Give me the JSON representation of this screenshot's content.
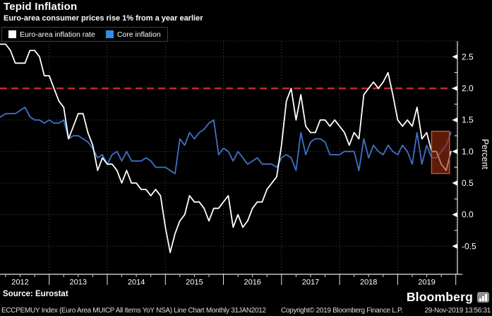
{
  "header": {
    "title": "Tepid Inflation",
    "subtitle": "Euro-area consumer prices rise 1% from a year earlier"
  },
  "legend": [
    {
      "label": "Euro-area inflation rate",
      "color": "#ffffff"
    },
    {
      "label": "Core inflation",
      "color": "#2f8fe8"
    }
  ],
  "chart_data": {
    "type": "line",
    "title": "Tepid Inflation",
    "frequency": "monthly",
    "x_start": "Jan 2012",
    "x_end": "Nov 2019",
    "x_tick_labels": [
      "2012",
      "2013",
      "2014",
      "2015",
      "2016",
      "2017",
      "2018",
      "2019"
    ],
    "ylabel": "Percent",
    "y_ticks": [
      2.5,
      2.0,
      1.5,
      1.0,
      0.5,
      0.0,
      -0.5
    ],
    "y_minor_ticks": [
      2.25,
      1.75,
      1.25,
      0.75,
      0.25,
      -0.25
    ],
    "ylim": [
      -0.95,
      2.75
    ],
    "grid": true,
    "legend_position": "top-left",
    "reference_line": {
      "value": 2.0,
      "color": "#bf2b2b",
      "style": "dashed",
      "label": ""
    },
    "highlight_box": {
      "from_month": "Jul 2019",
      "to_month": "Nov 2019",
      "month_index_start": 90,
      "month_index_end": 93.7,
      "value_low": 0.65,
      "value_high": 1.32,
      "fill": "rgba(158,45,16,0.6)",
      "border": "#b05a30"
    },
    "series": [
      {
        "name": "Euro-area inflation rate",
        "color": "#ffffff",
        "values": [
          2.7,
          2.7,
          2.7,
          2.6,
          2.4,
          2.4,
          2.4,
          2.6,
          2.6,
          2.5,
          2.2,
          2.2,
          2.0,
          1.8,
          1.7,
          1.2,
          1.4,
          1.6,
          1.6,
          1.3,
          1.1,
          0.7,
          0.9,
          0.8,
          0.8,
          0.7,
          0.5,
          0.7,
          0.5,
          0.5,
          0.4,
          0.4,
          0.3,
          0.4,
          0.3,
          -0.2,
          -0.6,
          -0.3,
          -0.1,
          0.0,
          0.3,
          0.2,
          0.2,
          0.1,
          -0.1,
          0.1,
          0.1,
          0.2,
          0.3,
          -0.2,
          0.0,
          -0.2,
          -0.1,
          0.1,
          0.2,
          0.2,
          0.4,
          0.5,
          0.6,
          1.1,
          1.8,
          2.0,
          1.5,
          1.9,
          1.4,
          1.3,
          1.3,
          1.5,
          1.5,
          1.4,
          1.5,
          1.4,
          1.3,
          1.1,
          1.3,
          1.2,
          1.9,
          2.0,
          2.1,
          2.0,
          2.1,
          2.25,
          1.9,
          1.5,
          1.4,
          1.5,
          1.4,
          1.7,
          1.2,
          1.3,
          1.0,
          1.0,
          0.8,
          0.7,
          1.0
        ]
      },
      {
        "name": "Core inflation",
        "color": "#3f72c8",
        "values": [
          1.55,
          1.55,
          1.6,
          1.6,
          1.6,
          1.65,
          1.7,
          1.55,
          1.5,
          1.5,
          1.45,
          1.5,
          1.45,
          1.45,
          1.5,
          1.2,
          1.25,
          1.25,
          1.2,
          1.15,
          1.05,
          0.9,
          0.95,
          0.8,
          0.95,
          1.0,
          0.85,
          1.0,
          0.85,
          0.85,
          0.85,
          0.9,
          0.85,
          0.75,
          0.75,
          0.75,
          0.7,
          0.65,
          1.2,
          1.1,
          1.3,
          1.2,
          1.3,
          1.35,
          1.45,
          1.5,
          0.95,
          1.05,
          1.0,
          0.85,
          1.0,
          0.9,
          0.8,
          0.85,
          0.9,
          0.8,
          0.8,
          0.8,
          0.75,
          0.9,
          0.95,
          0.9,
          0.7,
          1.3,
          0.95,
          1.15,
          1.2,
          1.2,
          1.15,
          0.95,
          0.95,
          0.95,
          1.0,
          1.0,
          1.0,
          0.7,
          1.2,
          0.9,
          1.1,
          1.0,
          0.95,
          1.1,
          1.0,
          0.95,
          1.1,
          1.0,
          0.8,
          1.3,
          0.8,
          1.1,
          0.9,
          0.9,
          1.0,
          1.1,
          1.3
        ]
      }
    ]
  },
  "source": "Source: Eurostat",
  "footer": {
    "left": "ECCPEMUY Index (Euro Area MUICP All Items YoY NSA) Line Chart  Monthly 31JAN2012",
    "copyright": "Copyright© 2019 Bloomberg Finance L.P.",
    "datetime": "29-Nov-2019 13:56:31"
  },
  "branding": {
    "logo": "Bloomberg"
  }
}
